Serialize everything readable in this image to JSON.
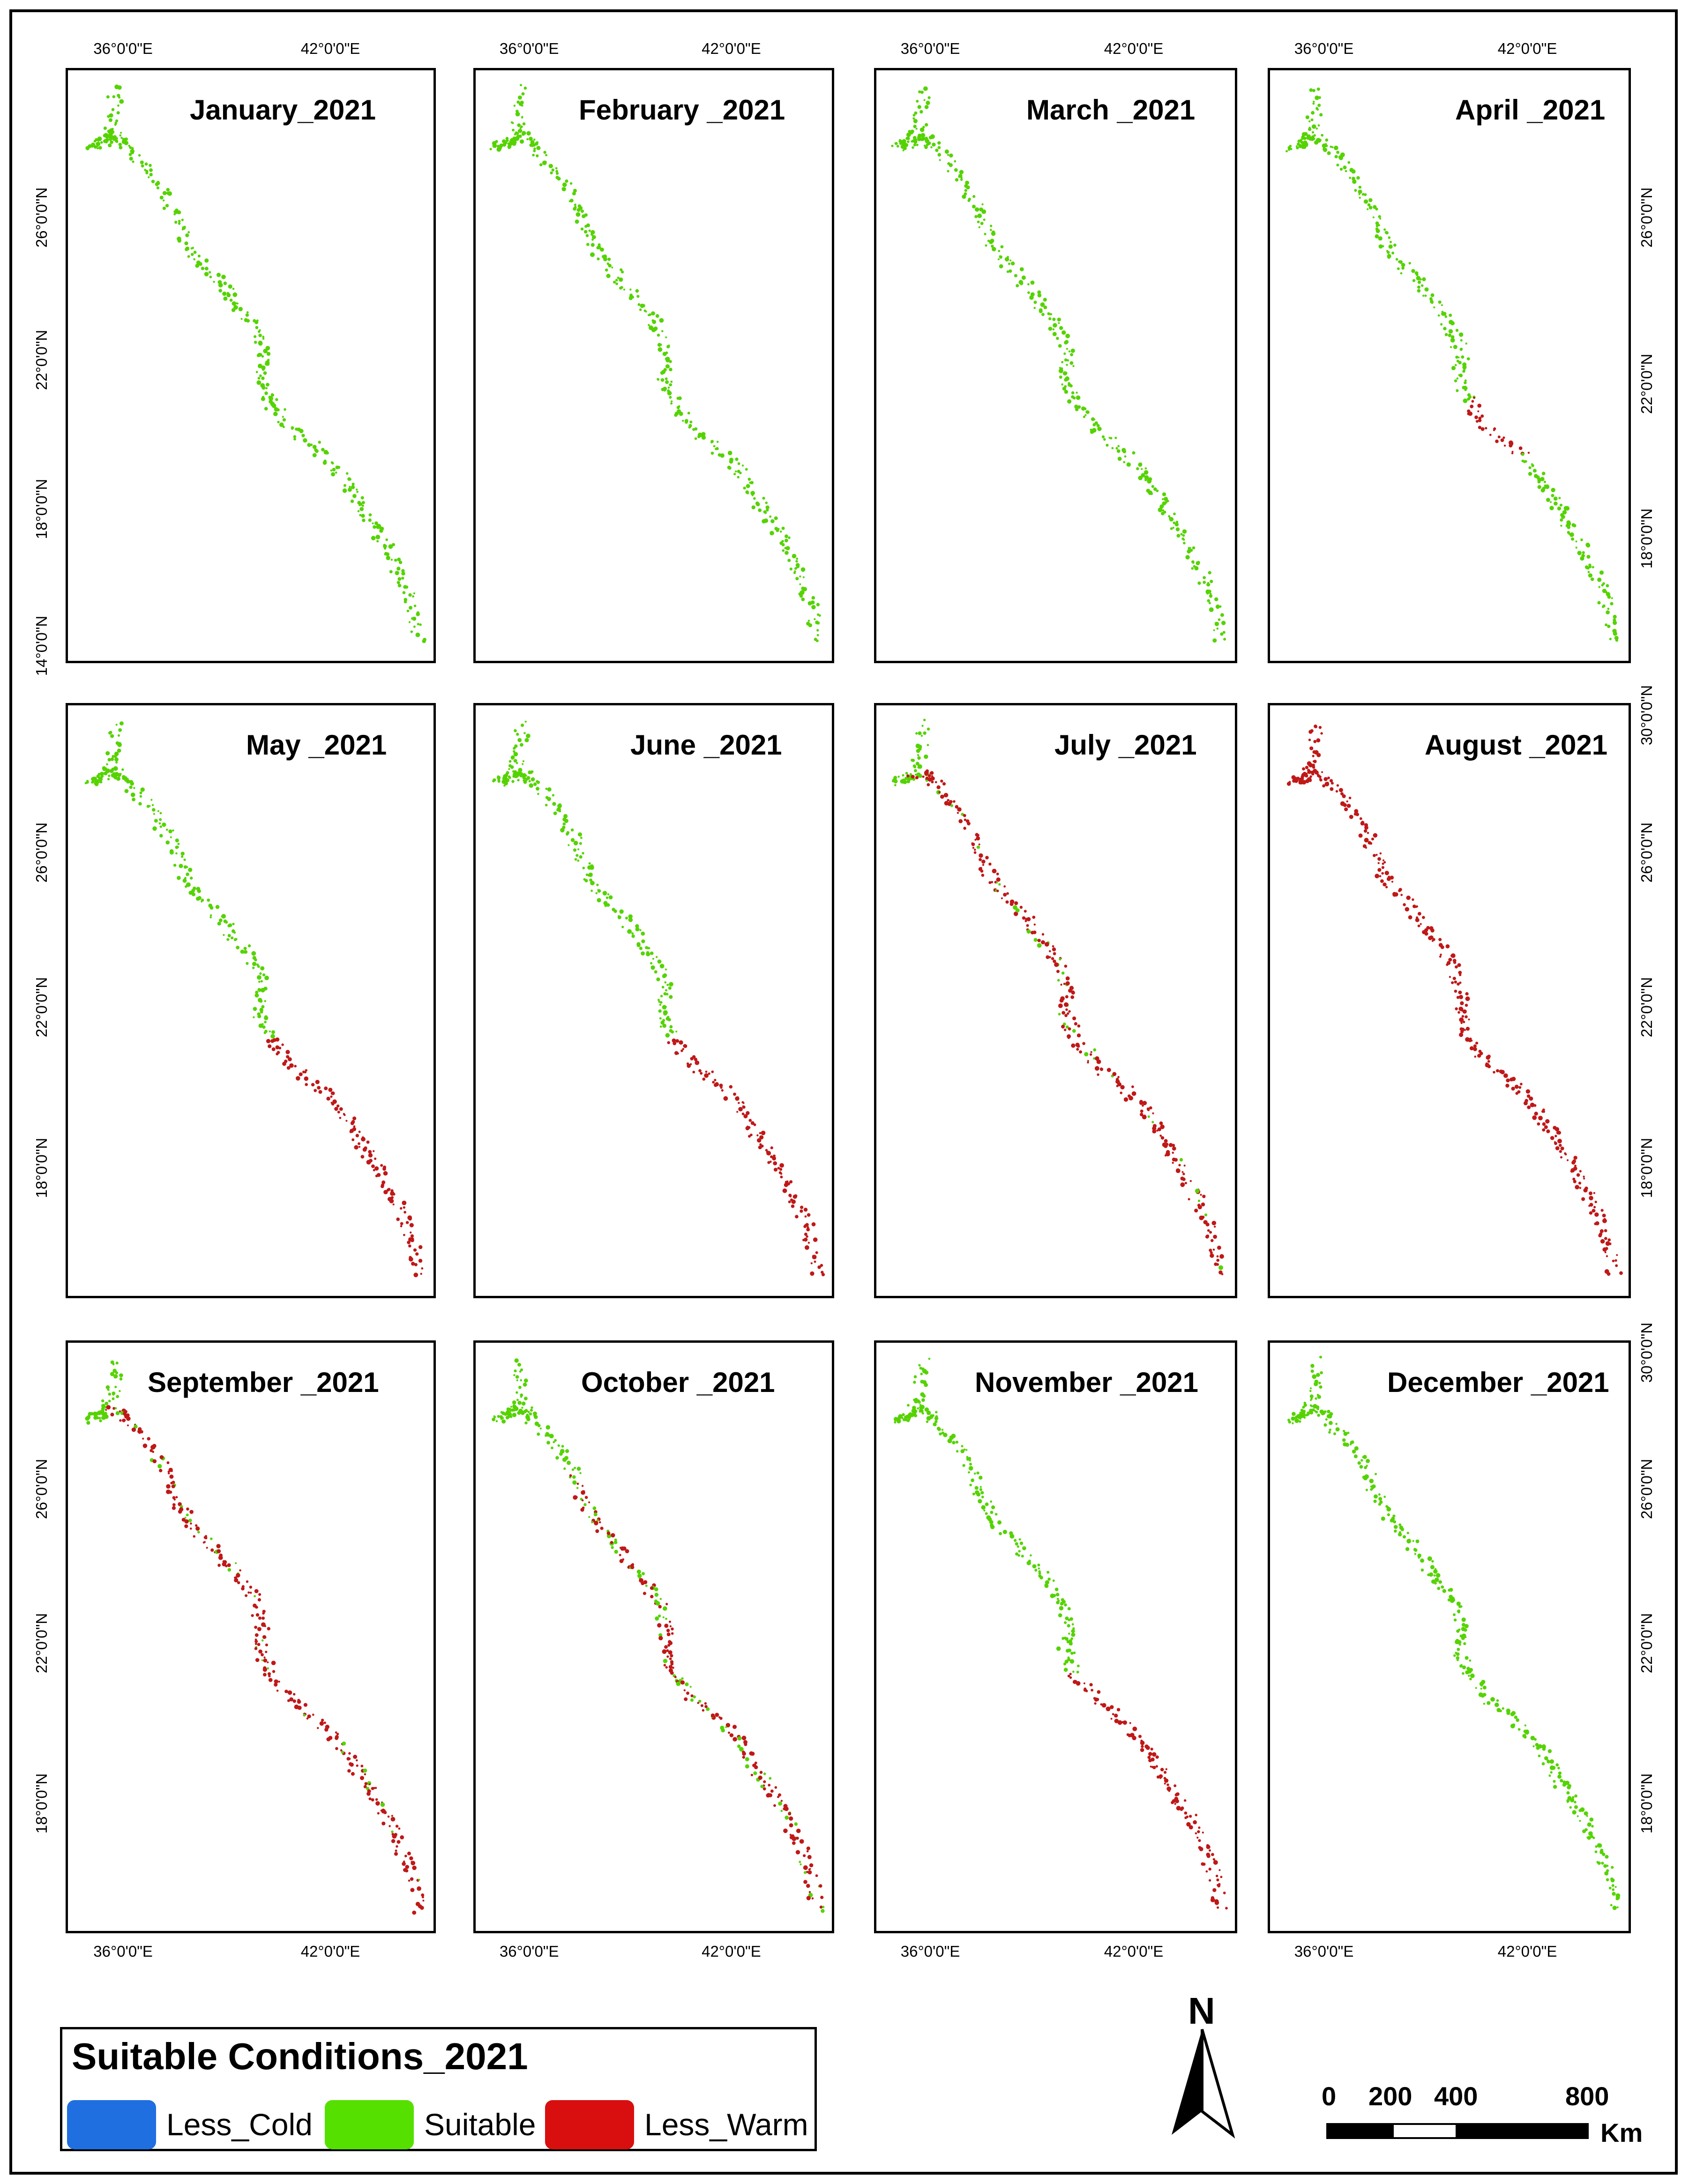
{
  "panels": [
    {
      "title": "January_2021",
      "regime": "all-green"
    },
    {
      "title": "February _2021",
      "regime": "all-green"
    },
    {
      "title": "March _2021",
      "regime": "all-green"
    },
    {
      "title": "April _2021",
      "regime": "mostly-green-red-south-mid"
    },
    {
      "title": "May _2021",
      "regime": "green-north-red-south"
    },
    {
      "title": "June _2021",
      "regime": "green-north-red-south"
    },
    {
      "title": "July _2021",
      "regime": "mostly-red"
    },
    {
      "title": "August _2021",
      "regime": "all-red"
    },
    {
      "title": "September _2021",
      "regime": "mostly-red"
    },
    {
      "title": "October _2021",
      "regime": "mixed-red"
    },
    {
      "title": "November _2021",
      "regime": "green-north-red-south"
    },
    {
      "title": "December _2021",
      "regime": "all-green"
    }
  ],
  "axes": {
    "lon_top_left": "36°0'0\"E",
    "lon_top_right": "42°0'0\"E",
    "lat_left_row1": [
      "26°0'0\"N",
      "22°0'0\"N",
      "18°0'0\"N",
      "14°0'0\"N"
    ],
    "lat_left_row2": [
      "26°0'0\"N",
      "22°0'0\"N",
      "18°0'0\"N"
    ],
    "lat_left_row3": [
      "26°0'0\"N",
      "22°0'0\"N",
      "18°0'0\"N"
    ],
    "lat_right_row1": [
      "26°0'0\"N",
      "22°0'0\"N",
      "18°0'0\"N"
    ],
    "lat_right_row2": [
      "30°0'0\"N",
      "26°0'0\"N",
      "22°0'0\"N",
      "18°0'0\"N"
    ],
    "lat_right_row3": [
      "30°0'0\"N",
      "26°0'0\"N",
      "22°0'0\"N",
      "18°0'0\"N"
    ]
  },
  "legend": {
    "title": "Suitable Conditions_2021",
    "items": [
      {
        "label": "Less_Cold",
        "color": "#1f6fe0"
      },
      {
        "label": "Suitable",
        "color": "#55e000"
      },
      {
        "label": "Less_Warm",
        "color": "#d90f0f"
      }
    ]
  },
  "north_arrow": {
    "letter": "N"
  },
  "scale_bar": {
    "labels": [
      "0",
      "200",
      "400",
      "800"
    ],
    "unit": "Km"
  },
  "colors": {
    "suitable": "#55d300",
    "warm": "#c01818"
  }
}
